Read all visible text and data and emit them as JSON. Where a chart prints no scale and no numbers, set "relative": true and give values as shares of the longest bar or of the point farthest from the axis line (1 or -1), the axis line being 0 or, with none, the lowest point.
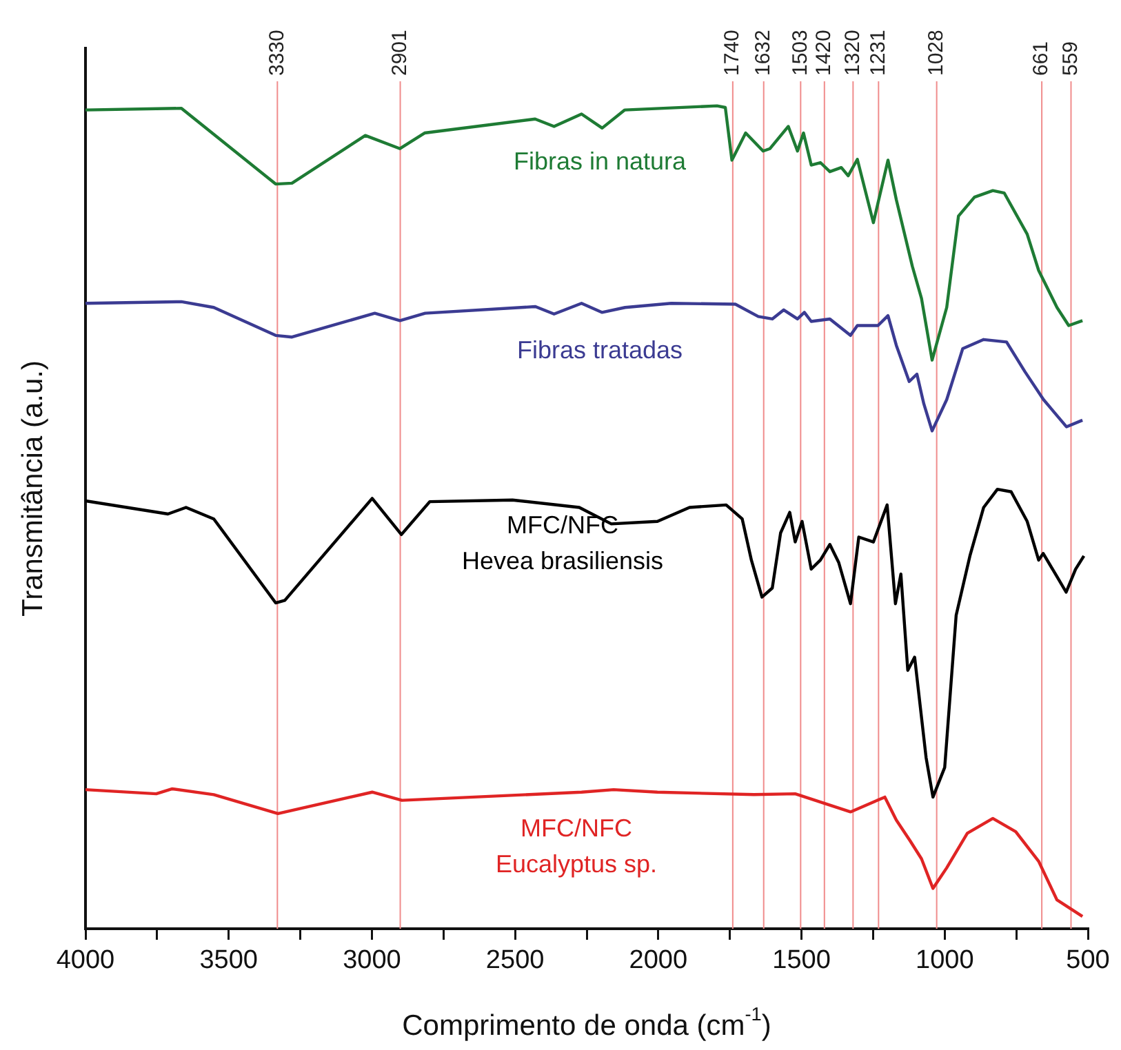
{
  "chart_data": {
    "type": "line",
    "xlabel": "Comprimento de onda (cm$^{-1}$)",
    "ylabel": "Transmitância (a.u.)",
    "relative": true,
    "xlim": [
      4000,
      500
    ],
    "xticks": [
      4000,
      {
        "value": 3750,
        "label": null
      },
      3500,
      {
        "value": 3250,
        "label": null
      },
      3000,
      {
        "value": 2750,
        "label": null
      },
      2500,
      {
        "value": 2250,
        "label": null
      },
      2000,
      {
        "value": 1750,
        "label": null
      },
      1500,
      {
        "value": 1250,
        "label": null
      },
      1000,
      {
        "value": 750,
        "label": null
      },
      500
    ],
    "grid": false,
    "legend": false,
    "marker": "none",
    "line_style": "solid",
    "series": [
      {
        "name": "Fibras in natura",
        "color": "#1e7b34",
        "x": [
          4000,
          3665,
          3336,
          3279,
          3023,
          2902,
          2816,
          2430,
          2364,
          2268,
          2196,
          2117,
          1795,
          1766,
          1743,
          1695,
          1634,
          1610,
          1546,
          1514,
          1493,
          1466,
          1434,
          1401,
          1361,
          1337,
          1305,
          1249,
          1198,
          1169,
          1113,
          1081,
          1044,
          993,
          952,
          896,
          832,
          792,
          712,
          672,
          608,
          567,
          519
        ],
        "values": [
          0.995,
          0.997,
          0.905,
          0.906,
          0.964,
          0.948,
          0.967,
          0.984,
          0.975,
          0.99,
          0.973,
          0.995,
          1,
          0.998,
          0.934,
          0.967,
          0.945,
          0.948,
          0.975,
          0.945,
          0.967,
          0.928,
          0.931,
          0.92,
          0.925,
          0.915,
          0.935,
          0.858,
          0.934,
          0.886,
          0.805,
          0.766,
          0.691,
          0.755,
          0.866,
          0.889,
          0.897,
          0.894,
          0.844,
          0.8,
          0.755,
          0.733,
          0.739
        ]
      },
      {
        "name": "Fibras tratadas",
        "color": "#3b3b92",
        "x": [
          4000,
          3665,
          3552,
          3336,
          3279,
          2990,
          2902,
          2814,
          2429,
          2364,
          2268,
          2196,
          2116,
          1955,
          1731,
          1651,
          1602,
          1562,
          1514,
          1490,
          1466,
          1401,
          1329,
          1305,
          1233,
          1198,
          1169,
          1124,
          1097,
          1073,
          1044,
          993,
          937,
          864,
          784,
          720,
          655,
          575,
          519
        ],
        "values": [
          0.76,
          0.762,
          0.755,
          0.721,
          0.719,
          0.748,
          0.739,
          0.748,
          0.756,
          0.747,
          0.76,
          0.749,
          0.755,
          0.76,
          0.759,
          0.744,
          0.741,
          0.752,
          0.741,
          0.749,
          0.738,
          0.741,
          0.721,
          0.733,
          0.733,
          0.745,
          0.709,
          0.665,
          0.674,
          0.638,
          0.605,
          0.643,
          0.705,
          0.716,
          0.713,
          0.677,
          0.643,
          0.61,
          0.618
        ]
      },
      {
        "name": "MFC/NFC\nHevea brasiliensis",
        "color": "#000000",
        "x": [
          4000,
          3712,
          3649,
          3552,
          3336,
          3304,
          2999,
          2897,
          2798,
          2509,
          2276,
          2164,
          2003,
          1891,
          1763,
          1707,
          1675,
          1638,
          1602,
          1573,
          1541,
          1522,
          1498,
          1466,
          1434,
          1401,
          1370,
          1329,
          1300,
          1249,
          1201,
          1172,
          1153,
          1129,
          1105,
          1065,
          1041,
          1000,
          960,
          912,
          864,
          816,
          768,
          712,
          672,
          656,
          608,
          576,
          543,
          514
        ],
        "values": [
          0.52,
          0.504,
          0.512,
          0.498,
          0.396,
          0.399,
          0.523,
          0.479,
          0.519,
          0.521,
          0.512,
          0.492,
          0.495,
          0.512,
          0.515,
          0.498,
          0.448,
          0.403,
          0.414,
          0.481,
          0.506,
          0.47,
          0.495,
          0.437,
          0.448,
          0.467,
          0.445,
          0.395,
          0.476,
          0.47,
          0.515,
          0.395,
          0.431,
          0.314,
          0.33,
          0.208,
          0.16,
          0.196,
          0.381,
          0.453,
          0.512,
          0.534,
          0.531,
          0.495,
          0.448,
          0.456,
          0.428,
          0.409,
          0.437,
          0.453
        ]
      },
      {
        "name": "MFC/NFC\nEucalyptus sp.",
        "color": "#e02424",
        "x": [
          4000,
          3753,
          3697,
          3552,
          3328,
          2999,
          2895,
          2268,
          2156,
          2003,
          1666,
          1522,
          1329,
          1209,
          1169,
          1121,
          1081,
          1041,
          993,
          921,
          832,
          752,
          672,
          608,
          519
        ],
        "values": [
          0.169,
          0.164,
          0.17,
          0.163,
          0.14,
          0.166,
          0.156,
          0.166,
          0.169,
          0.166,
          0.163,
          0.164,
          0.142,
          0.16,
          0.132,
          0.107,
          0.085,
          0.049,
          0.074,
          0.116,
          0.134,
          0.118,
          0.082,
          0.035,
          0.015
        ]
      }
    ],
    "ref_lines": [
      {
        "axis": "x",
        "value": 3330,
        "label": "3330",
        "color": "#f08c8c"
      },
      {
        "axis": "x",
        "value": 2901,
        "label": "2901",
        "color": "#f08c8c"
      },
      {
        "axis": "x",
        "value": 1740,
        "label": "1740",
        "color": "#f08c8c"
      },
      {
        "axis": "x",
        "value": 1632,
        "label": "1632",
        "color": "#f08c8c"
      },
      {
        "axis": "x",
        "value": 1503,
        "label": "1503",
        "color": "#f08c8c"
      },
      {
        "axis": "x",
        "value": 1420,
        "label": "1420",
        "color": "#f08c8c"
      },
      {
        "axis": "x",
        "value": 1320,
        "label": "1320",
        "color": "#f08c8c"
      },
      {
        "axis": "x",
        "value": 1231,
        "label": "1231",
        "color": "#f08c8c"
      },
      {
        "axis": "x",
        "value": 1028,
        "label": "1028",
        "color": "#f08c8c"
      },
      {
        "axis": "x",
        "value": 661,
        "label": "661",
        "color": "#f08c8c"
      },
      {
        "axis": "x",
        "value": 559,
        "label": "559",
        "color": "#f08c8c"
      }
    ]
  }
}
